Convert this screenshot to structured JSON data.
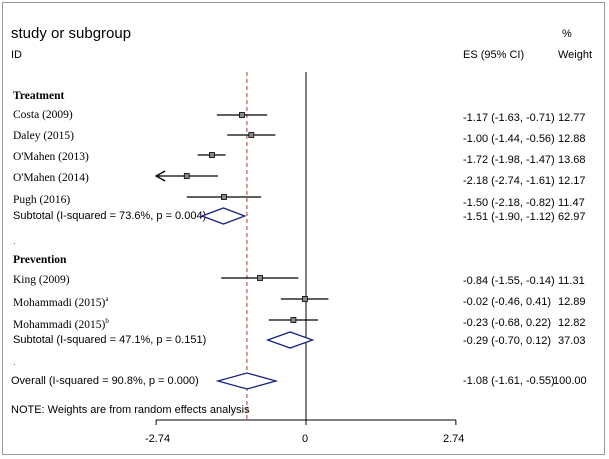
{
  "chart_data": {
    "type": "forest",
    "header": {
      "title": "study or subgroup",
      "id_label": "ID",
      "es_label": "ES (95% CI)",
      "pct_label": "%",
      "weight_label": "Weight"
    },
    "x_ticks": [
      {
        "value": -2.74,
        "label": "-2.74"
      },
      {
        "value": 0,
        "label": "0"
      },
      {
        "value": 2.74,
        "label": "2.74"
      }
    ],
    "overall_effect_line": -1.08,
    "groups": [
      {
        "name": "Treatment",
        "studies": [
          {
            "label": "Costa (2009)",
            "es": -1.17,
            "lo": -1.63,
            "hi": -0.71,
            "es_text": "-1.17 (-1.63, -0.71)",
            "weight": "12.77",
            "arrow_left": false
          },
          {
            "label": "Daley (2015)",
            "es": -1.0,
            "lo": -1.44,
            "hi": -0.56,
            "es_text": "-1.00 (-1.44, -0.56)",
            "weight": "12.88",
            "arrow_left": false
          },
          {
            "label": "O'Mahen (2013)",
            "es": -1.72,
            "lo": -1.98,
            "hi": -1.47,
            "es_text": "-1.72 (-1.98, -1.47)",
            "weight": "13.68",
            "arrow_left": false
          },
          {
            "label": "O'Mahen (2014)",
            "es": -2.18,
            "lo": -2.74,
            "hi": -1.61,
            "es_text": "-2.18 (-2.74, -1.61)",
            "weight": "12.17",
            "arrow_left": true
          },
          {
            "label": "Pugh (2016)",
            "es": -1.5,
            "lo": -2.18,
            "hi": -0.82,
            "es_text": "-1.50 (-2.18, -0.82)",
            "weight": "11.47",
            "arrow_left": false
          }
        ],
        "subtotal": {
          "label": "Subtotal  (I-squared = 73.6%, p = 0.004)",
          "es": -1.51,
          "lo": -1.9,
          "hi": -1.12,
          "es_text": "-1.51 (-1.90, -1.12)",
          "weight": "62.97"
        }
      },
      {
        "name": "Prevention",
        "studies": [
          {
            "label": "King (2009)",
            "es": -0.84,
            "lo": -1.55,
            "hi": -0.14,
            "es_text": "-0.84 (-1.55, -0.14)",
            "weight": "11.31",
            "arrow_left": false
          },
          {
            "label": "Mohammadi (2015)",
            "sup": "a",
            "es": -0.02,
            "lo": -0.46,
            "hi": 0.41,
            "es_text": "-0.02 (-0.46, 0.41)",
            "weight": "12.89",
            "arrow_left": false
          },
          {
            "label": "Mohammadi (2015)",
            "sup": "b",
            "es": -0.23,
            "lo": -0.68,
            "hi": 0.22,
            "es_text": "-0.23 (-0.68, 0.22)",
            "weight": "12.82",
            "arrow_left": false
          }
        ],
        "subtotal": {
          "label": "Subtotal  (I-squared = 47.1%, p = 0.151)",
          "es": -0.29,
          "lo": -0.7,
          "hi": 0.12,
          "es_text": "-0.29 (-0.70, 0.12)",
          "weight": "37.03"
        }
      }
    ],
    "overall": {
      "label": "Overall  (I-squared = 90.8%, p = 0.000)",
      "es": -1.08,
      "lo": -1.61,
      "hi": -0.55,
      "es_text": "-1.08 (-1.61, -0.55)",
      "weight": "100.00"
    },
    "note": "NOTE: Weights are from random effects analysis",
    "colors": {
      "diamond": "#1a237e",
      "dashed": "#b03a2e",
      "line": "#000000"
    }
  }
}
